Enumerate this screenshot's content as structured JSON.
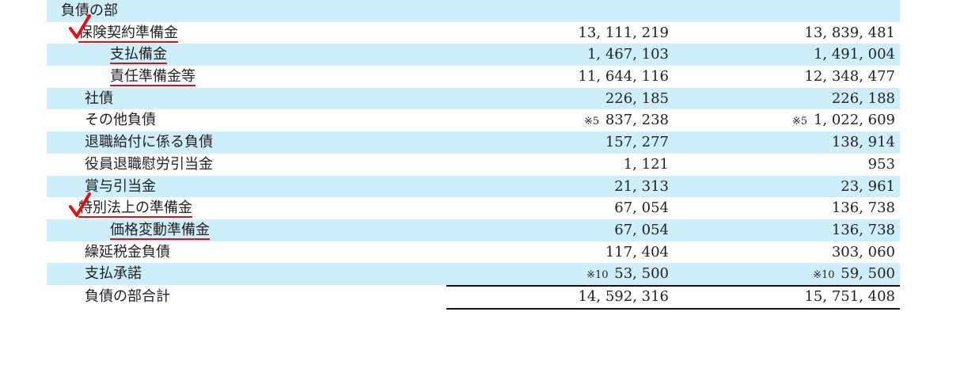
{
  "section": "負債の部",
  "rows": [
    {
      "label": "保険契約準備金",
      "v1": "13, 111, 219",
      "v2": "13, 839, 481"
    },
    {
      "label": "支払備金",
      "v1": "1, 467, 103",
      "v2": "1, 491, 004"
    },
    {
      "label": "責任準備金等",
      "v1": "11, 644, 116",
      "v2": "12, 348, 477"
    },
    {
      "label": "社債",
      "v1": "226, 185",
      "v2": "226, 188"
    },
    {
      "label": "その他負債",
      "note1": "※5",
      "v1": "837, 238",
      "note2": "※5",
      "v2": "1, 022, 609"
    },
    {
      "label": "退職給付に係る負債",
      "v1": "157, 277",
      "v2": "138, 914"
    },
    {
      "label": "役員退職慰労引当金",
      "v1": "1, 121",
      "v2": "953"
    },
    {
      "label": "賞与引当金",
      "v1": "21, 313",
      "v2": "23, 961"
    },
    {
      "label": "特別法上の準備金",
      "v1": "67, 054",
      "v2": "136, 738"
    },
    {
      "label": "価格変動準備金",
      "v1": "67, 054",
      "v2": "136, 738"
    },
    {
      "label": "繰延税金負債",
      "v1": "117, 404",
      "v2": "303, 060"
    },
    {
      "label": "支払承諾",
      "note1": "※10",
      "v1": "53, 500",
      "note2": "※10",
      "v2": "59, 500"
    }
  ],
  "total": {
    "label": "負債の部合計",
    "v1": "14, 592, 316",
    "v2": "15, 751, 408"
  },
  "annotation_color": "#dd1111",
  "shade_color": "#cfeefb"
}
